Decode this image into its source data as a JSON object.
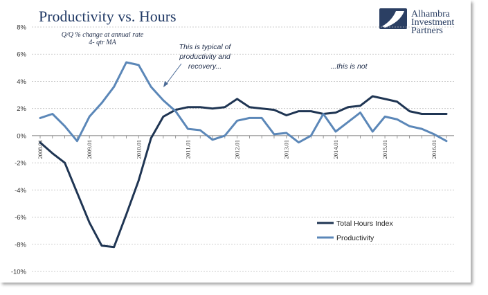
{
  "title": "Productivity vs. Hours",
  "note_line1": "Q/Q % change at annual rate",
  "note_line2": "4- qtr MA",
  "annotation1": [
    "This is typical of",
    "productivity and",
    "recovery..."
  ],
  "annotation2": "...this is not",
  "logo": [
    "Alhambra",
    "Investment",
    "Partners"
  ],
  "colors": {
    "hours": "#1f3553",
    "productivity": "#5b87b8",
    "grid": "#bfbfbf",
    "axis": "#7f7f7f"
  },
  "chart_data": {
    "type": "line",
    "title": "Productivity vs. Hours",
    "ylim": [
      -10,
      8
    ],
    "yticks": [
      8,
      6,
      4,
      2,
      0,
      -2,
      -4,
      -6,
      -8,
      -10
    ],
    "ytick_labels": [
      "8%",
      "6%",
      "4%",
      "2%",
      "0%",
      "-2%",
      "-4%",
      "-6%",
      "-8%",
      "-10%"
    ],
    "x_tick_labels": [
      "2008.01",
      "2009.01",
      "2010.01",
      "2011.01",
      "2012.01",
      "2013.01",
      "2014.01",
      "2015.01",
      "2016.01"
    ],
    "x": [
      "2008Q1",
      "2008Q2",
      "2008Q3",
      "2008Q4",
      "2009Q1",
      "2009Q2",
      "2009Q3",
      "2009Q4",
      "2010Q1",
      "2010Q2",
      "2010Q3",
      "2010Q4",
      "2011Q1",
      "2011Q2",
      "2011Q3",
      "2011Q4",
      "2012Q1",
      "2012Q2",
      "2012Q3",
      "2012Q4",
      "2013Q1",
      "2013Q2",
      "2013Q3",
      "2013Q4",
      "2014Q1",
      "2014Q2",
      "2014Q3",
      "2014Q4",
      "2015Q1",
      "2015Q2",
      "2015Q3",
      "2015Q4",
      "2016Q1",
      "2016Q2"
    ],
    "grid": true,
    "legend_position": "bottom-right",
    "series": [
      {
        "name": "Total Hours Index",
        "values": [
          -0.5,
          -1.3,
          -2.0,
          -4.2,
          -6.4,
          -8.1,
          -8.2,
          -5.8,
          -3.3,
          -0.2,
          1.4,
          1.9,
          2.1,
          2.1,
          2.0,
          2.1,
          2.7,
          2.1,
          2.0,
          1.9,
          1.5,
          1.8,
          1.8,
          1.6,
          1.7,
          2.1,
          2.2,
          2.9,
          2.7,
          2.5,
          1.8,
          1.6,
          1.6,
          1.6
        ]
      },
      {
        "name": "Productivity",
        "values": [
          1.3,
          1.6,
          0.7,
          -0.4,
          1.4,
          2.4,
          3.6,
          5.4,
          5.2,
          3.6,
          2.6,
          1.8,
          0.5,
          0.4,
          -0.3,
          0.0,
          1.1,
          1.3,
          1.3,
          0.1,
          0.2,
          -0.5,
          0.0,
          1.6,
          0.3,
          1.0,
          1.7,
          0.3,
          1.4,
          1.2,
          0.7,
          0.5,
          0.1,
          -0.4
        ]
      }
    ]
  }
}
